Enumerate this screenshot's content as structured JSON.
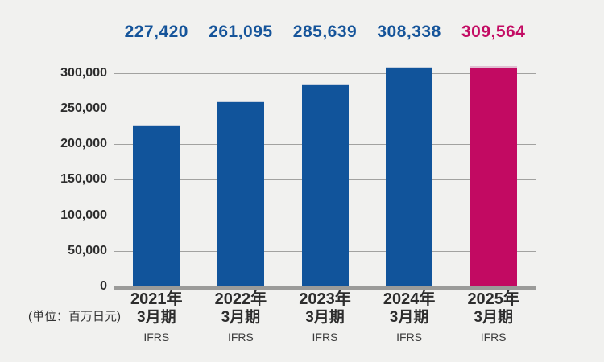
{
  "colors": {
    "background": "#f1f1ef",
    "bar_primary": "#11549b",
    "bar_primary_edge": "#c6d0dd",
    "bar_highlight": "#c20a62",
    "bar_highlight_edge": "#e0bed1",
    "value_primary": "#15549a",
    "value_highlight": "#c30b63",
    "gridline": "#a2a2a0",
    "baseline": "#9b9b99",
    "axis_text": "#2d2d2d",
    "category_text": "#2d2d2d",
    "standard_text": "#3c3c3c",
    "unit_text": "#333333"
  },
  "chart_data": {
    "type": "bar",
    "title": "",
    "xlabel": "",
    "ylabel": "",
    "unit": "(単位：百万日元)",
    "categories": [
      {
        "year": "2021年",
        "period": "3月期",
        "standard": "IFRS"
      },
      {
        "year": "2022年",
        "period": "3月期",
        "standard": "IFRS"
      },
      {
        "year": "2023年",
        "period": "3月期",
        "standard": "IFRS"
      },
      {
        "year": "2024年",
        "period": "3月期",
        "standard": "IFRS"
      },
      {
        "year": "2025年",
        "period": "3月期",
        "standard": "IFRS"
      }
    ],
    "values": [
      227420,
      261095,
      285639,
      308338,
      309564
    ],
    "value_labels": [
      "227,420",
      "261,095",
      "285,639",
      "308,338",
      "309,564"
    ],
    "highlight_index": 4,
    "yticks": [
      0,
      50000,
      100000,
      150000,
      200000,
      250000,
      300000
    ],
    "ytick_labels": [
      "0",
      "50,000",
      "100,000",
      "150,000",
      "200,000",
      "250,000",
      "300,000"
    ],
    "ylim": [
      0,
      330000
    ],
    "grid": true,
    "legend": false
  }
}
